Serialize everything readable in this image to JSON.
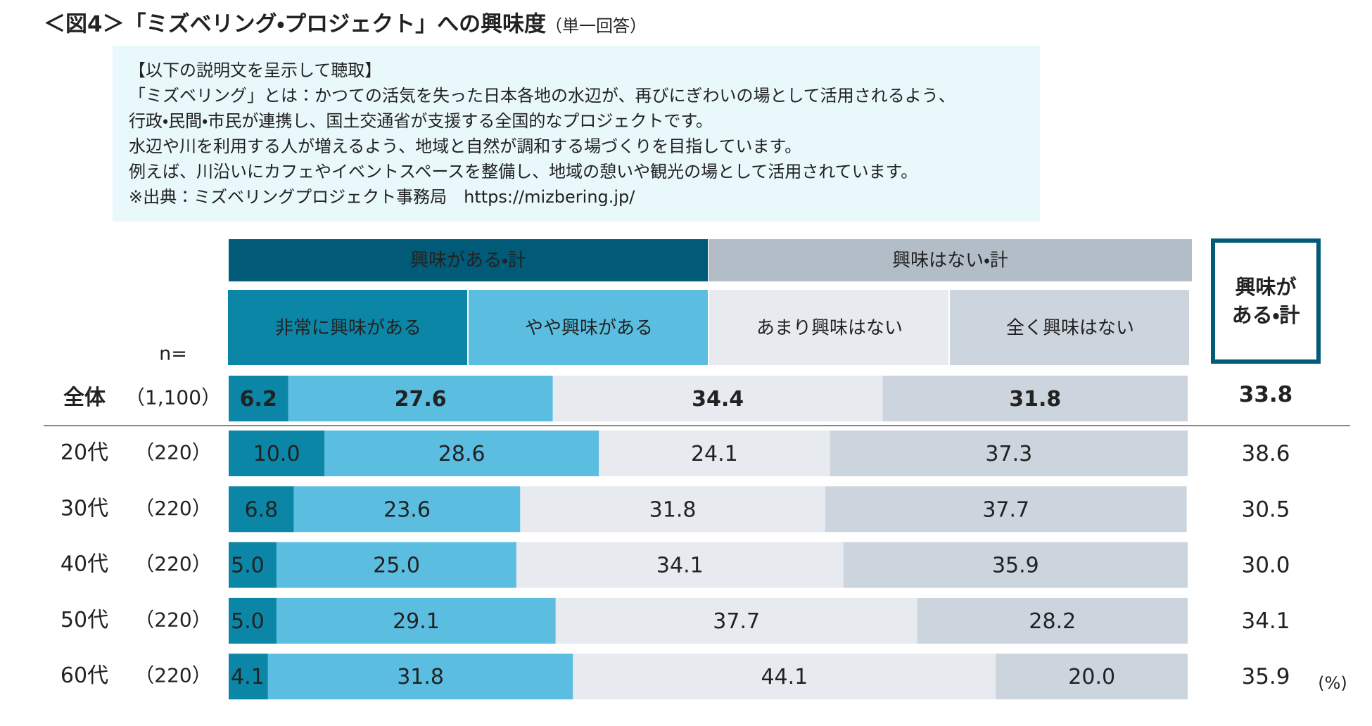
{
  "chart_data": {
    "type": "stacked-bar",
    "orientation": "horizontal",
    "title": "＜図4＞「ミズベリング・プロジェクト」への興味度",
    "subtitle": "（単一回答）",
    "description": [
      "【以下の説明文を呈示して聴取】",
      "「ミズベリング」とは：かつての活気を失った日本各地の水辺が、再びにぎわいの場として活用されるよう、",
      "行政・民間・市民が連携し、国土交通省が支援する全国的なプロジェクトです。",
      "水辺や川を利用する人が増えるよう、地域と自然が調和する場づくりを目指しています。",
      "例えば、川沿いにカフェやイベントスペースを整備し、地域の憩いや観光の場として活用されています。",
      "※出典：ミズベリングプロジェクト事務局　https://mizbering.jp/"
    ],
    "group_headers": [
      {
        "name": "興味がある・計",
        "color": "#005a78",
        "text_color": "#ffffff"
      },
      {
        "name": "興味はない・計",
        "color": "#b3bdc8",
        "text_color": "#333333"
      }
    ],
    "n_label": "n=",
    "categories": [
      "全体",
      "20代",
      "30代",
      "40代",
      "50代",
      "60代"
    ],
    "sample_sizes": [
      "（1,100）",
      "（220）",
      "（220）",
      "（220）",
      "（220）",
      "（220）"
    ],
    "xlim": [
      0,
      100
    ],
    "series": [
      {
        "name": "非常に興味がある",
        "color": "#0b86a6",
        "label_color": "#ffffff",
        "values": [
          6.2,
          10.0,
          6.8,
          5.0,
          5.0,
          4.1
        ],
        "value_labels": [
          "6.2",
          "10.0",
          "6.8",
          "5.0",
          "5.0",
          "4.1"
        ]
      },
      {
        "name": "やや興味がある",
        "color": "#5bbde0",
        "label_color": "#ffffff",
        "values": [
          27.6,
          28.6,
          23.6,
          25.0,
          29.1,
          31.8
        ],
        "value_labels": [
          "27.6",
          "28.6",
          "23.6",
          "25.0",
          "29.1",
          "31.8"
        ]
      },
      {
        "name": "あまり興味はない",
        "color": "#e7eaee",
        "label_color": "#333333",
        "values": [
          34.4,
          24.1,
          31.8,
          34.1,
          37.7,
          44.1
        ],
        "value_labels": [
          "34.4",
          "24.1",
          "31.8",
          "34.1",
          "37.7",
          "44.1"
        ]
      },
      {
        "name": "全く興味はない",
        "color": "#ccd4dd",
        "label_color": "#555555",
        "values": [
          31.8,
          37.3,
          37.7,
          35.9,
          28.2,
          20.0
        ],
        "value_labels": [
          "31.8",
          "37.3",
          "37.7",
          "35.9",
          "28.2",
          "20.0"
        ]
      }
    ],
    "totals": {
      "name_lines": [
        "興味が",
        "ある・計"
      ],
      "border_color": "#005a78",
      "values": [
        33.8,
        38.6,
        30.5,
        30.0,
        34.1,
        35.9
      ],
      "value_labels": [
        "33.8",
        "38.6",
        "30.5",
        "30.0",
        "34.1",
        "35.9"
      ]
    },
    "unit": "(%)"
  }
}
